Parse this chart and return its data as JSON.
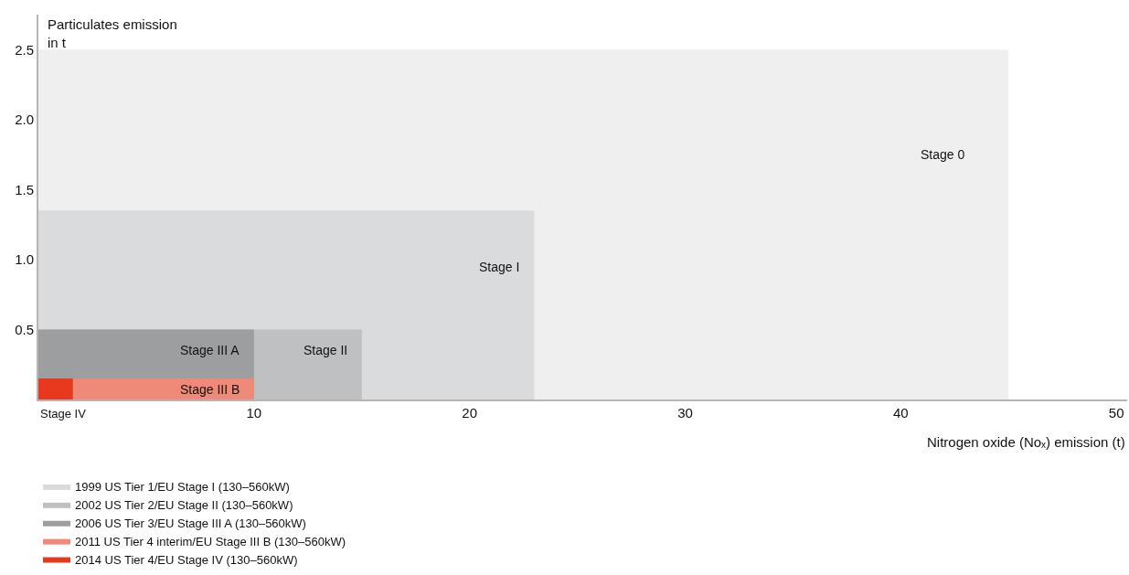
{
  "chart_data": {
    "type": "area",
    "ylabel": "Particulates emission\nin t",
    "xlabel": "Nitrogen oxide (Noₓ) emission (t)",
    "xlim": [
      0,
      50.5
    ],
    "xticks": [
      10,
      20,
      30,
      40,
      50
    ],
    "ylim": [
      0,
      2.75
    ],
    "yticks": [
      0.5,
      {
        "value": 1,
        "label": "1.0"
      },
      1.5,
      {
        "value": 2,
        "label": "2.0"
      },
      2.5
    ],
    "legend": "bottom left",
    "series": [
      {
        "color": "#efefef",
        "x": [
          0,
          45
        ],
        "values": [
          2.5,
          2.5
        ]
      },
      {
        "name": "1999 US Tier 1/EU Stage I (130–560kW)",
        "color": "#dadbdd",
        "x": [
          0,
          23
        ],
        "values": [
          1.35,
          1.35
        ]
      },
      {
        "name": "2002 US Tier 2/EU Stage II (130–560kW)",
        "color": "#bfc0c2",
        "x": [
          0,
          15
        ],
        "values": [
          0.5,
          0.5
        ]
      },
      {
        "name": "2006 US Tier 3/EU Stage III A (130–560kW)",
        "color": "#9d9ea0",
        "x": [
          0,
          10
        ],
        "values": [
          0.5,
          0.5
        ]
      },
      {
        "name": "2011 US Tier 4 interim/EU Stage III B (130–560kW)",
        "color": "#f08a78",
        "x": [
          0,
          10
        ],
        "values": [
          0.15,
          0.15
        ]
      },
      {
        "name": "2014 US Tier 4/EU Stage IV (130–560kW)",
        "color": "#e8381e",
        "x": [
          0,
          1.6
        ],
        "values": [
          0.15,
          0.15
        ]
      }
    ],
    "annotations": [
      "Stage 0",
      "Stage I",
      "Stage II",
      "Stage III A",
      "Stage III B",
      "Stage IV"
    ]
  }
}
